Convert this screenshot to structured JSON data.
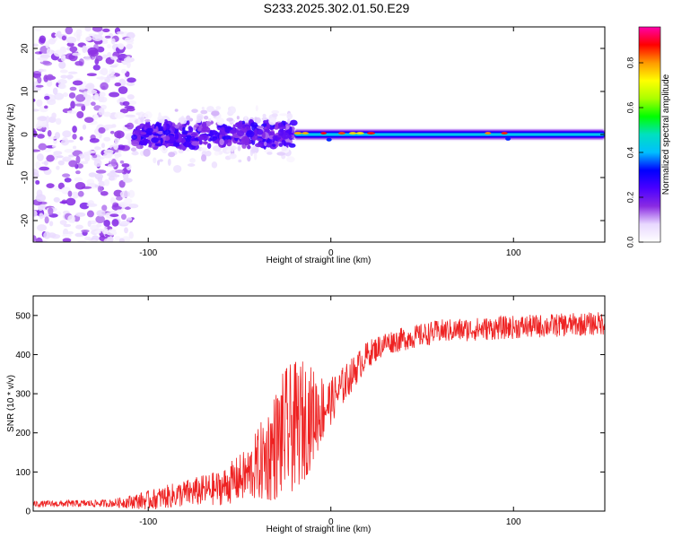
{
  "figure_title": "S233.2025.302.01.50.E29",
  "chart_data": [
    {
      "type": "heatmap",
      "xlabel": "Height of straight line (km)",
      "ylabel": "Frequency (Hz)",
      "xlim": [
        -163,
        150
      ],
      "ylim": [
        -25,
        25
      ],
      "xticks": [
        -100,
        0,
        100
      ],
      "yticks": [
        -20,
        -10,
        0,
        10,
        20
      ],
      "colorbar": {
        "label": "Normalized spectral amplitude",
        "range": [
          0,
          0.96
        ],
        "ticks": [
          0.0,
          0.2,
          0.4,
          0.6,
          0.8
        ],
        "colormap": [
          "#ffffff",
          "#e8d8ff",
          "#8a2be2",
          "#4a00ff",
          "#0000ff",
          "#00bfff",
          "#00e0c0",
          "#00ff00",
          "#aaff00",
          "#ffff00",
          "#ff9900",
          "#ff0000",
          "#ff00aa"
        ]
      },
      "regions": [
        {
          "x_range": [
            -163,
            -108
          ],
          "description_values": {
            "freq_spread_hz": 25,
            "amplitude": 0.08
          }
        },
        {
          "x_range": [
            -108,
            -20
          ],
          "description_values": {
            "freq_spread_hz": 10,
            "amplitude": 0.12
          }
        },
        {
          "x_range": [
            -20,
            150
          ],
          "description_values": {
            "center_hz": 0,
            "half_width_hz": 1.5,
            "amplitude": 0.4
          }
        }
      ]
    },
    {
      "type": "line",
      "xlabel": "Height of straight line (km)",
      "ylabel": "SNR (10 * v/v)",
      "xlim": [
        -163,
        150
      ],
      "ylim": [
        0,
        550
      ],
      "xticks": [
        -100,
        0,
        100
      ],
      "yticks": [
        0,
        100,
        200,
        300,
        400,
        500
      ],
      "series": [
        {
          "name": "SNR",
          "color": "#ee2222",
          "envelope_x": [
            -163,
            -120,
            -100,
            -80,
            -60,
            -45,
            -35,
            -25,
            -15,
            -8,
            0,
            10,
            20,
            30,
            60,
            100,
            150
          ],
          "envelope_y": [
            18,
            20,
            28,
            45,
            60,
            95,
            140,
            200,
            230,
            250,
            280,
            340,
            400,
            430,
            460,
            470,
            480
          ],
          "noise_amplitude": [
            8,
            10,
            25,
            35,
            45,
            70,
            120,
            170,
            160,
            110,
            60,
            45,
            35,
            30,
            30,
            30,
            30
          ]
        }
      ]
    }
  ]
}
